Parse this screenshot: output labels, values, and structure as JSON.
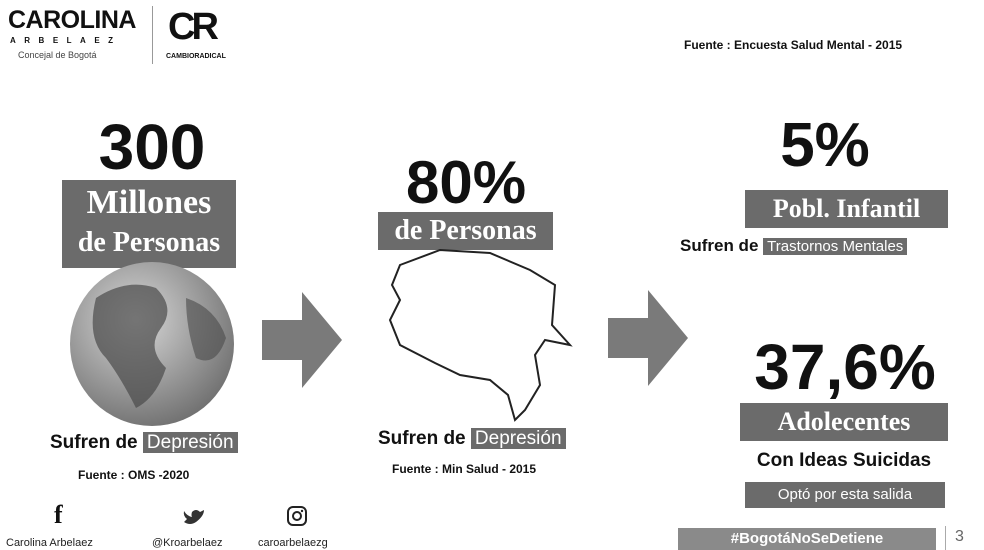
{
  "header": {
    "brand_name": "CAROLINA",
    "brand_surname": "ARBELAEZ",
    "brand_role": "Concejal de Bogotá",
    "party_logo": "CR",
    "party_name": "CAMBIORADICAL",
    "source": "Fuente : Encuesta Salud Mental - 2015"
  },
  "world": {
    "figure": "300",
    "label_1": "Millones",
    "label_2": "de Personas",
    "caption": "Sufren de",
    "highlight": "Depresión",
    "source": "Fuente : OMS -2020"
  },
  "country": {
    "figure": "80%",
    "label": "de Personas",
    "caption": "Sufren de",
    "highlight": "Depresión",
    "source": "Fuente : Min Salud - 2015"
  },
  "children": {
    "figure": "5%",
    "label": "Pobl. Infantil",
    "caption": "Sufren de",
    "highlight": "Trastornos Mentales"
  },
  "teens": {
    "figure": "37,6%",
    "label": "Adolecentes",
    "caption": "Con Ideas Suicidas",
    "highlight": "Optó por esta salida"
  },
  "footer": {
    "facebook": "Carolina Arbelaez",
    "twitter": "@Kroarbelaez",
    "instagram": "caroarbelaezg",
    "hashtag": "#BogotáNoSeDetiene",
    "page": "3"
  }
}
